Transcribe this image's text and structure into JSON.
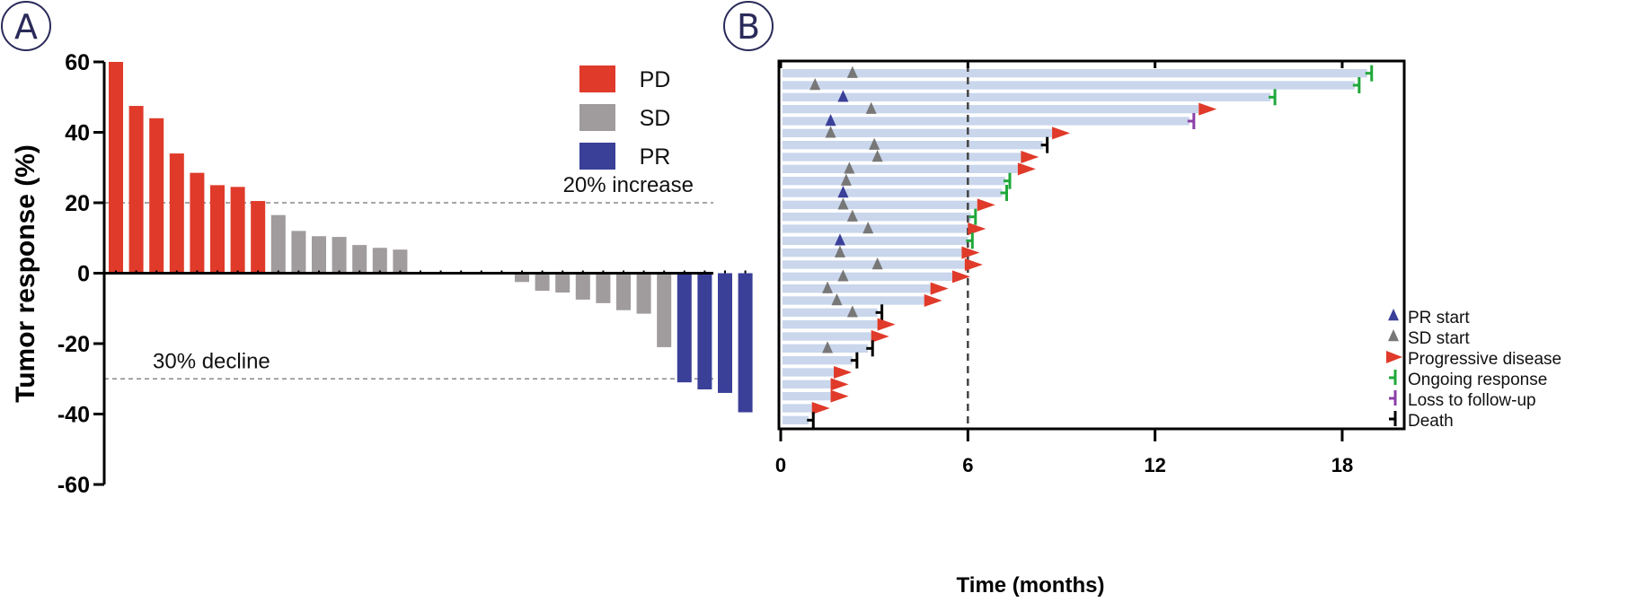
{
  "chart_data": [
    {
      "panel": "A",
      "type": "bar",
      "title": "",
      "xlabel": "",
      "ylabel": "Tumor response (%)",
      "ylim": [
        -60,
        60
      ],
      "yticks": [
        60,
        40,
        20,
        0,
        -20,
        -40,
        -60
      ],
      "yticklabels": [
        "60",
        "40",
        "20",
        "0",
        "-20",
        "-40",
        "-60"
      ],
      "grid": false,
      "legend_position": "top-right",
      "legend": [
        {
          "label": "PD",
          "color": "#e03a2a"
        },
        {
          "label": "SD",
          "color": "#a09b9c"
        },
        {
          "label": "PR",
          "color": "#3a3f98"
        }
      ],
      "reference_lines": [
        {
          "value": 20,
          "label": "20% increase"
        },
        {
          "value": -30,
          "label": "30% decline"
        }
      ],
      "bars": [
        {
          "value": 60,
          "category": "PD"
        },
        {
          "value": 47.5,
          "category": "PD"
        },
        {
          "value": 44,
          "category": "PD"
        },
        {
          "value": 34,
          "category": "PD"
        },
        {
          "value": 28.5,
          "category": "PD"
        },
        {
          "value": 25,
          "category": "PD"
        },
        {
          "value": 24.5,
          "category": "PD"
        },
        {
          "value": 20.5,
          "category": "PD"
        },
        {
          "value": 16.5,
          "category": "SD"
        },
        {
          "value": 12,
          "category": "SD"
        },
        {
          "value": 10.5,
          "category": "SD"
        },
        {
          "value": 10.3,
          "category": "SD"
        },
        {
          "value": 8,
          "category": "SD"
        },
        {
          "value": 7.2,
          "category": "SD"
        },
        {
          "value": 6.7,
          "category": "SD"
        },
        {
          "value": 0,
          "category": "SD"
        },
        {
          "value": 0,
          "category": "SD"
        },
        {
          "value": 0,
          "category": "SD"
        },
        {
          "value": 0,
          "category": "SD"
        },
        {
          "value": 0,
          "category": "SD"
        },
        {
          "value": -2.5,
          "category": "SD"
        },
        {
          "value": -5,
          "category": "SD"
        },
        {
          "value": -5.5,
          "category": "SD"
        },
        {
          "value": -7.5,
          "category": "SD"
        },
        {
          "value": -8.5,
          "category": "SD"
        },
        {
          "value": -10.5,
          "category": "SD"
        },
        {
          "value": -11.5,
          "category": "SD"
        },
        {
          "value": -21,
          "category": "SD"
        },
        {
          "value": -31,
          "category": "PR"
        },
        {
          "value": -33,
          "category": "PR"
        },
        {
          "value": -34,
          "category": "PR"
        },
        {
          "value": -39.5,
          "category": "PR"
        }
      ]
    },
    {
      "panel": "B",
      "type": "swimmer",
      "title": "",
      "xlabel": "Time (months)",
      "ylabel": "",
      "xlim": [
        0,
        20
      ],
      "xticks": [
        0,
        6,
        12,
        18
      ],
      "xticklabels": [
        "0",
        "6",
        "12",
        "18"
      ],
      "reference_lines": [
        {
          "axis": "x",
          "value": 6
        }
      ],
      "grid": false,
      "legend_position": "bottom-right",
      "legend": [
        {
          "label": "PR start",
          "marker": "up-triangle",
          "color": "#3a3f98"
        },
        {
          "label": "SD start",
          "marker": "up-triangle",
          "color": "#777777"
        },
        {
          "label": "Progressive disease",
          "marker": "right-triangle",
          "color": "#e03a2a"
        },
        {
          "label": "Ongoing response",
          "marker": "tick",
          "color": "#1fa83a"
        },
        {
          "label": "Loss to follow-up",
          "marker": "tick",
          "color": "#8a3fa8"
        },
        {
          "label": "Death",
          "marker": "tick",
          "color": "#000000"
        }
      ],
      "bar_color": "#c9d6ec",
      "patients": [
        {
          "duration": 18.8,
          "start": {
            "type": "SD",
            "time": 2.3
          },
          "end": "Ongoing response"
        },
        {
          "duration": 18.4,
          "start": {
            "type": "SD",
            "time": 1.1
          },
          "end": "Ongoing response"
        },
        {
          "duration": 15.7,
          "start": {
            "type": "PR",
            "time": 2.0
          },
          "end": "Ongoing response"
        },
        {
          "duration": 13.4,
          "start": {
            "type": "SD",
            "time": 2.9
          },
          "end": "Progressive disease"
        },
        {
          "duration": 13.1,
          "start": {
            "type": "PR",
            "time": 1.6
          },
          "end": "Loss to follow-up"
        },
        {
          "duration": 8.7,
          "start": {
            "type": "SD",
            "time": 1.6
          },
          "end": "Progressive disease"
        },
        {
          "duration": 8.4,
          "start": {
            "type": "SD",
            "time": 3.0
          },
          "end": "Death"
        },
        {
          "duration": 7.7,
          "start": {
            "type": "SD",
            "time": 3.1
          },
          "end": "Progressive disease"
        },
        {
          "duration": 7.6,
          "start": {
            "type": "SD",
            "time": 2.2
          },
          "end": "Progressive disease"
        },
        {
          "duration": 7.2,
          "start": {
            "type": "SD",
            "time": 2.1
          },
          "end": "Ongoing response"
        },
        {
          "duration": 7.1,
          "start": {
            "type": "PR",
            "time": 2.0
          },
          "end": "Ongoing response"
        },
        {
          "duration": 6.3,
          "start": {
            "type": "SD",
            "time": 2.0
          },
          "end": "Progressive disease"
        },
        {
          "duration": 6.1,
          "start": {
            "type": "SD",
            "time": 2.3
          },
          "end": "Ongoing response"
        },
        {
          "duration": 6.0,
          "start": {
            "type": "SD",
            "time": 2.8
          },
          "end": "Progressive disease"
        },
        {
          "duration": 6.0,
          "start": {
            "type": "PR",
            "time": 1.9
          },
          "end": "Ongoing response"
        },
        {
          "duration": 5.8,
          "start": {
            "type": "SD",
            "time": 1.9
          },
          "end": "Progressive disease"
        },
        {
          "duration": 5.9,
          "start": {
            "type": "SD",
            "time": 3.1
          },
          "end": "Progressive disease"
        },
        {
          "duration": 5.5,
          "start": {
            "type": "SD",
            "time": 2.0
          },
          "end": "Progressive disease"
        },
        {
          "duration": 4.8,
          "start": {
            "type": "SD",
            "time": 1.5
          },
          "end": "Progressive disease"
        },
        {
          "duration": 4.6,
          "start": {
            "type": "SD",
            "time": 1.8
          },
          "end": "Progressive disease"
        },
        {
          "duration": 3.1,
          "start": {
            "type": "SD",
            "time": 2.3
          },
          "end": "Death"
        },
        {
          "duration": 3.1,
          "start": null,
          "end": "Progressive disease"
        },
        {
          "duration": 2.9,
          "start": null,
          "end": "Progressive disease"
        },
        {
          "duration": 2.8,
          "start": {
            "type": "SD",
            "time": 1.5
          },
          "end": "Death"
        },
        {
          "duration": 2.3,
          "start": null,
          "end": "Death"
        },
        {
          "duration": 1.7,
          "start": null,
          "end": "Progressive disease"
        },
        {
          "duration": 1.6,
          "start": null,
          "end": "Progressive disease"
        },
        {
          "duration": 1.6,
          "start": null,
          "end": "Progressive disease"
        },
        {
          "duration": 1.0,
          "start": null,
          "end": "Progressive disease"
        },
        {
          "duration": 0.9,
          "start": null,
          "end": "Death"
        }
      ]
    }
  ],
  "panel_labels": {
    "a": "A",
    "b": "B"
  }
}
